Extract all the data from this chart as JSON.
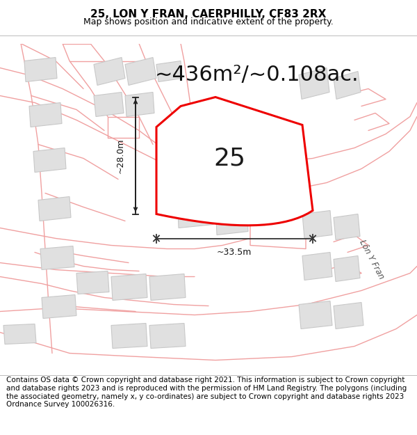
{
  "title_line1": "25, LON Y FRAN, CAERPHILLY, CF83 2RX",
  "title_line2": "Map shows position and indicative extent of the property.",
  "area_text": "~436m²/~0.108ac.",
  "label_number": "25",
  "dim_width": "~33.5m",
  "dim_height": "~28.0m",
  "road_label": "Lôn Y Fran",
  "footer_text": "Contains OS data © Crown copyright and database right 2021. This information is subject to Crown copyright and database rights 2023 and is reproduced with the permission of HM Land Registry. The polygons (including the associated geometry, namely x, y co-ordinates) are subject to Crown copyright and database rights 2023 Ordnance Survey 100026316.",
  "bg_color": "#ffffff",
  "map_bg": "#ffffff",
  "plot_color": "#ffffff",
  "plot_edge_color": "#ee0000",
  "road_line_color": "#f0a0a0",
  "building_fill": "#e0e0e0",
  "building_edge": "#c8c8c8",
  "title_fontsize": 11,
  "subtitle_fontsize": 9,
  "area_fontsize": 22,
  "label_fontsize": 26,
  "footer_fontsize": 7.5
}
